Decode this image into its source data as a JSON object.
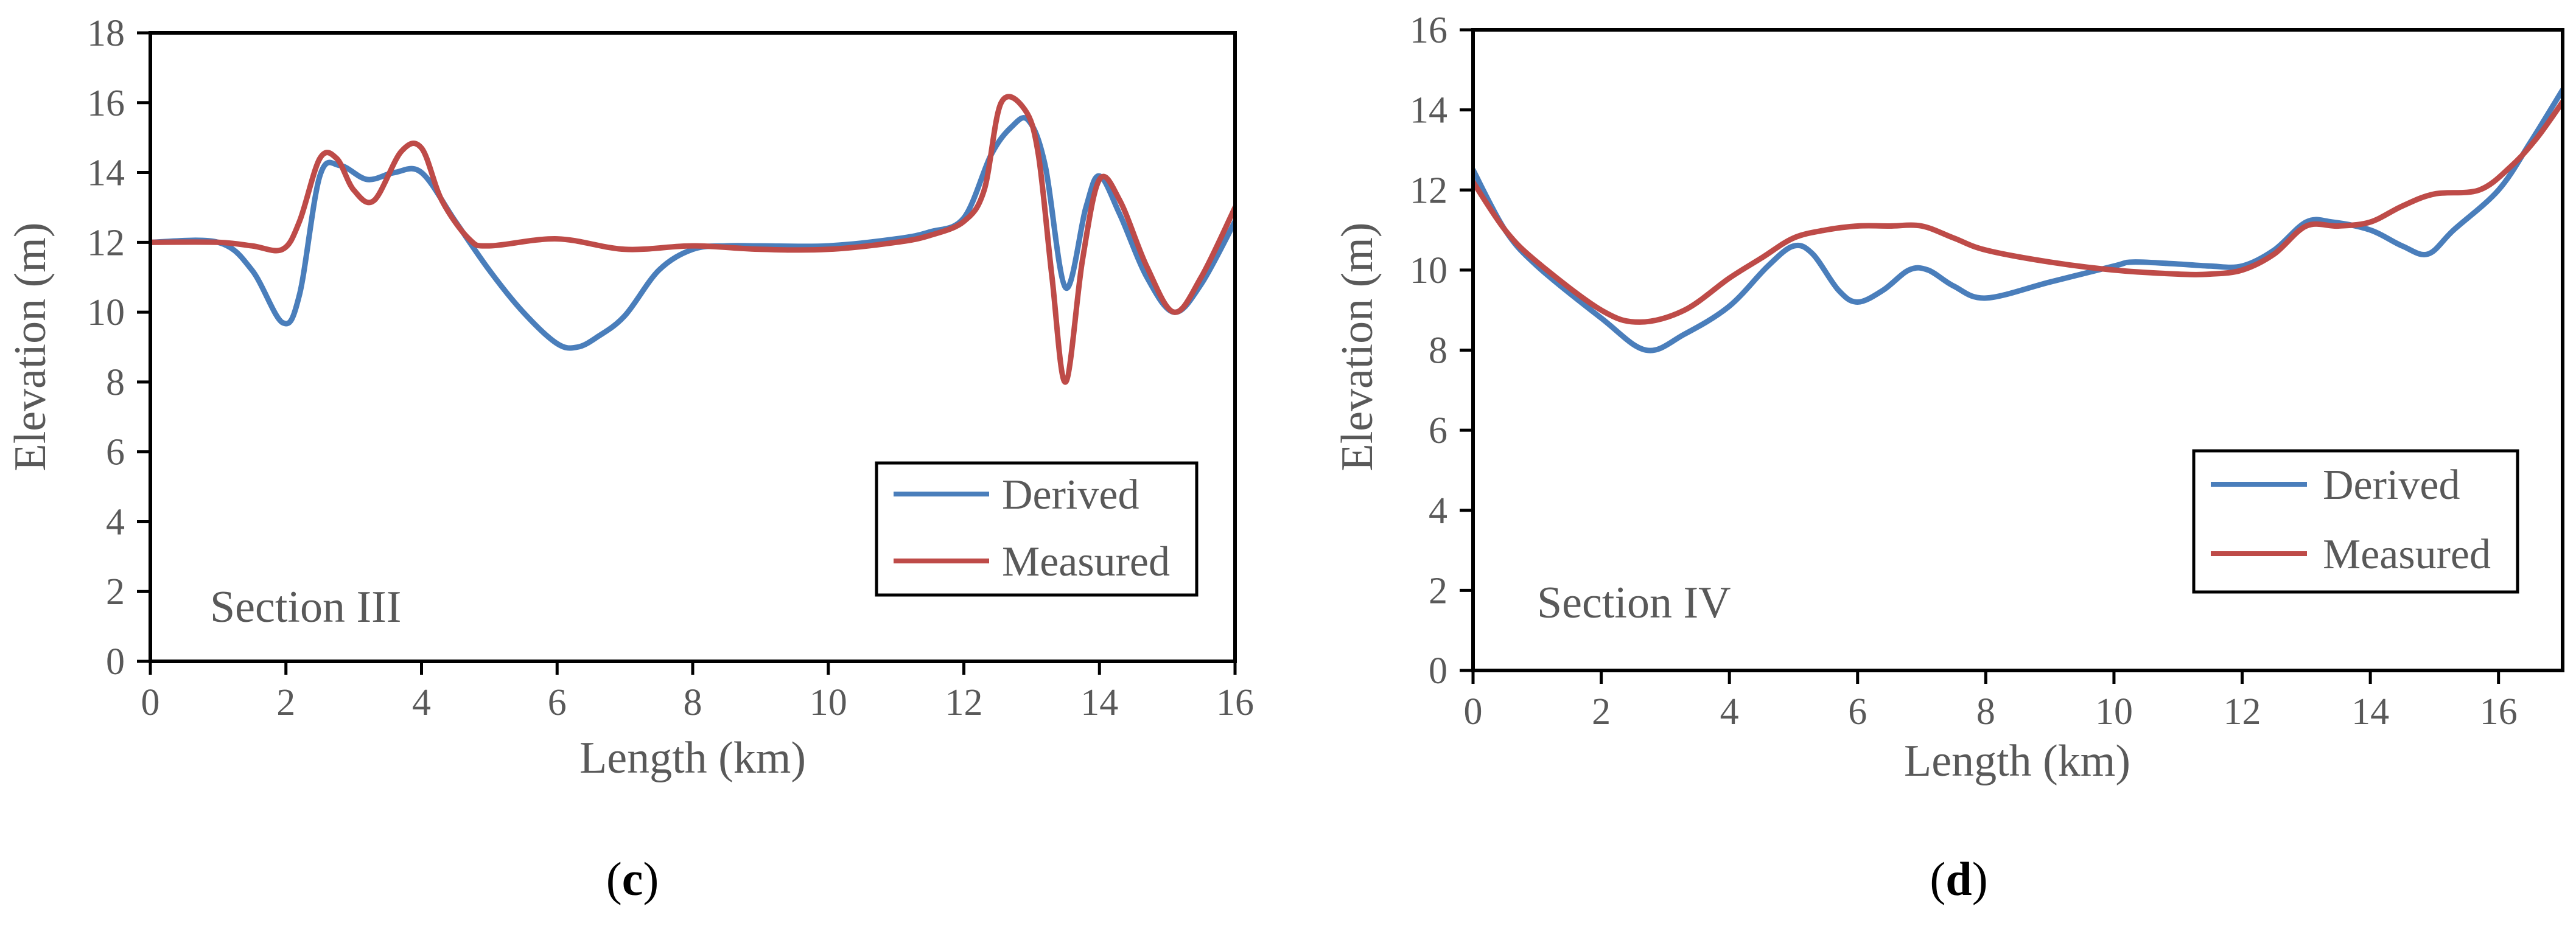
{
  "chart_data": [
    {
      "type": "line",
      "panel_label_prefix": "(",
      "panel_label_letter": "c",
      "panel_label_suffix": ")",
      "annotation": "Section III",
      "xlabel": "Length (km)",
      "ylabel": "Elevation (m)",
      "xlim": [
        0,
        16
      ],
      "ylim": [
        0,
        18
      ],
      "xticks": [
        0,
        2,
        4,
        6,
        8,
        10,
        12,
        14,
        16
      ],
      "yticks": [
        0,
        2,
        4,
        6,
        8,
        10,
        12,
        14,
        16,
        18
      ],
      "legend_position": "bottom-right",
      "grid": false,
      "series": [
        {
          "name": "Derived",
          "color": "#4a7ebb",
          "x": [
            0,
            1,
            1.5,
            1.95,
            2.2,
            2.5,
            2.8,
            3.2,
            3.6,
            4.0,
            4.5,
            5.0,
            5.5,
            6.0,
            6.3,
            6.6,
            7.0,
            7.5,
            8.0,
            8.5,
            9.0,
            10.0,
            11.0,
            11.5,
            12.0,
            12.4,
            12.7,
            12.95,
            13.2,
            13.5,
            13.8,
            14.0,
            14.3,
            14.7,
            15.1,
            15.5,
            16.0
          ],
          "y": [
            12.0,
            12.0,
            11.2,
            9.7,
            10.5,
            13.9,
            14.2,
            13.8,
            14.0,
            14.0,
            12.6,
            11.2,
            10.0,
            9.1,
            9.0,
            9.3,
            9.9,
            11.2,
            11.8,
            11.9,
            11.9,
            11.9,
            12.1,
            12.3,
            12.7,
            14.5,
            15.3,
            15.5,
            14.2,
            10.7,
            13.0,
            13.9,
            12.8,
            11.0,
            10.0,
            10.8,
            12.6
          ]
        },
        {
          "name": "Measured",
          "color": "#be4b48",
          "x": [
            0,
            1,
            1.5,
            1.95,
            2.2,
            2.5,
            2.75,
            3.0,
            3.3,
            3.7,
            4.0,
            4.3,
            4.7,
            5.0,
            6.0,
            7.0,
            8.0,
            9.0,
            10.0,
            11.0,
            11.5,
            12.0,
            12.3,
            12.55,
            12.9,
            13.1,
            13.3,
            13.5,
            13.75,
            14.0,
            14.3,
            14.7,
            15.1,
            15.5,
            16.0
          ],
          "y": [
            12.0,
            12.0,
            11.9,
            11.8,
            12.6,
            14.4,
            14.4,
            13.5,
            13.2,
            14.6,
            14.7,
            13.2,
            12.1,
            11.9,
            12.1,
            11.8,
            11.9,
            11.8,
            11.8,
            12.0,
            12.2,
            12.6,
            13.5,
            16.0,
            15.8,
            14.5,
            11.0,
            8.0,
            11.5,
            13.8,
            13.2,
            11.3,
            10.0,
            11.0,
            13.0
          ]
        }
      ]
    },
    {
      "type": "line",
      "panel_label_prefix": "(",
      "panel_label_letter": "d",
      "panel_label_suffix": ")",
      "annotation": "Section IV",
      "xlabel": "Length (km)",
      "ylabel": "Elevation (m)",
      "xlim": [
        0,
        17
      ],
      "ylim": [
        0,
        16
      ],
      "xticks": [
        0,
        2,
        4,
        6,
        8,
        10,
        12,
        14,
        16
      ],
      "yticks": [
        0,
        2,
        4,
        6,
        8,
        10,
        12,
        14,
        16
      ],
      "legend_position": "bottom-right",
      "grid": false,
      "series": [
        {
          "name": "Derived",
          "color": "#4a7ebb",
          "x": [
            0,
            0.5,
            1.0,
            2.0,
            2.7,
            3.3,
            4.0,
            4.6,
            5.0,
            5.3,
            5.7,
            6.0,
            6.4,
            6.8,
            7.1,
            7.5,
            8.0,
            9.0,
            10.0,
            10.3,
            11.0,
            11.5,
            12.0,
            12.5,
            13.0,
            13.4,
            14.0,
            14.5,
            14.9,
            15.3,
            16.0,
            16.5,
            17.0
          ],
          "y": [
            12.5,
            11.0,
            10.1,
            8.8,
            8.0,
            8.4,
            9.1,
            10.1,
            10.6,
            10.4,
            9.5,
            9.2,
            9.5,
            10.0,
            10.0,
            9.6,
            9.3,
            9.7,
            10.1,
            10.2,
            10.15,
            10.1,
            10.1,
            10.5,
            11.2,
            11.2,
            11.0,
            10.6,
            10.4,
            11.0,
            12.0,
            13.2,
            14.5
          ]
        },
        {
          "name": "Measured",
          "color": "#be4b48",
          "x": [
            0,
            0.5,
            1.0,
            2.0,
            2.6,
            3.3,
            4.0,
            4.5,
            5.0,
            5.5,
            6.0,
            6.5,
            7.0,
            7.5,
            8.0,
            9.0,
            10.0,
            11.0,
            11.5,
            12.0,
            12.5,
            13.0,
            13.5,
            14.0,
            14.5,
            15.0,
            15.7,
            16.2,
            16.6,
            17.0
          ],
          "y": [
            12.2,
            11.0,
            10.2,
            9.0,
            8.7,
            9.0,
            9.8,
            10.3,
            10.8,
            11.0,
            11.1,
            11.1,
            11.1,
            10.8,
            10.5,
            10.2,
            10.0,
            9.9,
            9.9,
            10.0,
            10.4,
            11.1,
            11.1,
            11.2,
            11.6,
            11.9,
            12.0,
            12.6,
            13.3,
            14.2
          ]
        }
      ]
    }
  ]
}
